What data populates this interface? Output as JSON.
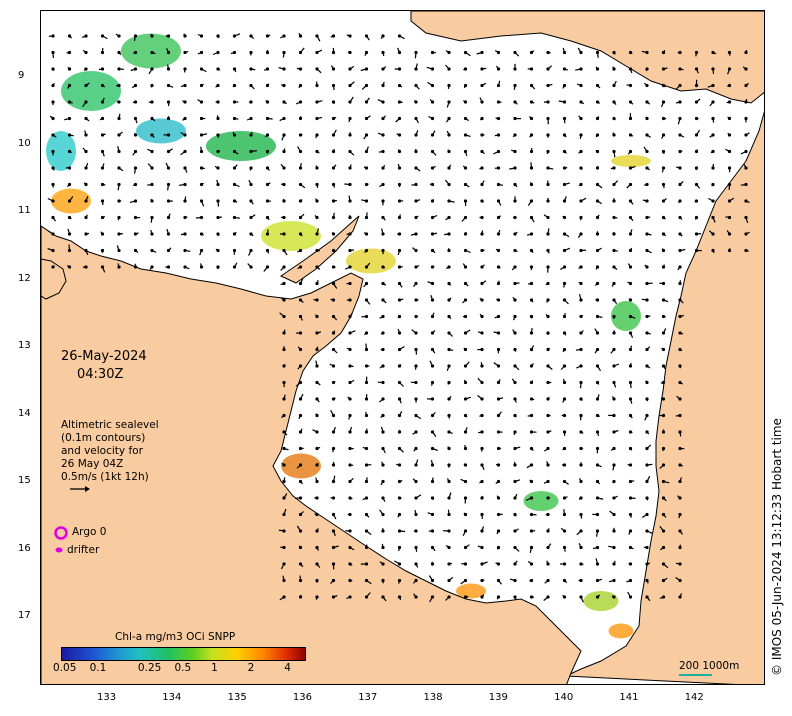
{
  "timestamp": {
    "date": "26-May-2024",
    "time": "04:30Z"
  },
  "legend": {
    "line1": "Altimetric sealevel",
    "line2": "(0.1m contours)",
    "line3": "and velocity for",
    "line4": "26 May 04Z",
    "line5": "0.5m/s (1kt 12h)",
    "argo_label": "Argo 0",
    "drifter_label": "drifter"
  },
  "colorbar": {
    "title": "Chl-a mg/m3 OCi SNPP",
    "ticks": [
      "0.05",
      "0.1",
      "0.25",
      "0.5",
      "1",
      "2",
      "4"
    ]
  },
  "y_ticks": [
    "9",
    "10",
    "11",
    "12",
    "13",
    "14",
    "15",
    "16",
    "17"
  ],
  "x_ticks": [
    "133",
    "134",
    "135",
    "136",
    "137",
    "138",
    "139",
    "140",
    "141",
    "142"
  ],
  "scale_bar": {
    "label": "200  1000m"
  },
  "credit": "© IMOS 05-Jun-2024 13:12:33 Hobart time",
  "colors": {
    "land": "#F9CBA0",
    "ocean": "#FFFFFF",
    "arrow": "#000000",
    "argo": "#E000E0"
  }
}
